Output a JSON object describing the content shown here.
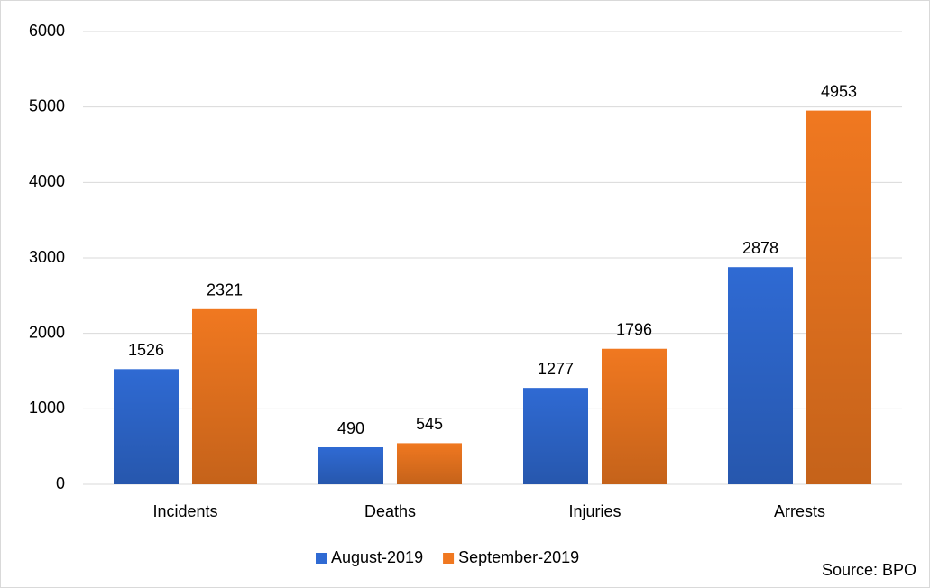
{
  "chart_data": {
    "type": "bar",
    "categories": [
      "Incidents",
      "Deaths",
      "Injuries",
      "Arrests"
    ],
    "series": [
      {
        "name": "August-2019",
        "color": "#2f6ad3",
        "values": [
          1526,
          490,
          1277,
          2878
        ]
      },
      {
        "name": "September-2019",
        "color": "#f07820",
        "values": [
          2321,
          545,
          1796,
          4953
        ]
      }
    ],
    "ylim": [
      0,
      6000
    ],
    "yticks": [
      0,
      1000,
      2000,
      3000,
      4000,
      5000,
      6000
    ],
    "grid": true,
    "legend": "bottom",
    "source": "Source: BPO"
  }
}
